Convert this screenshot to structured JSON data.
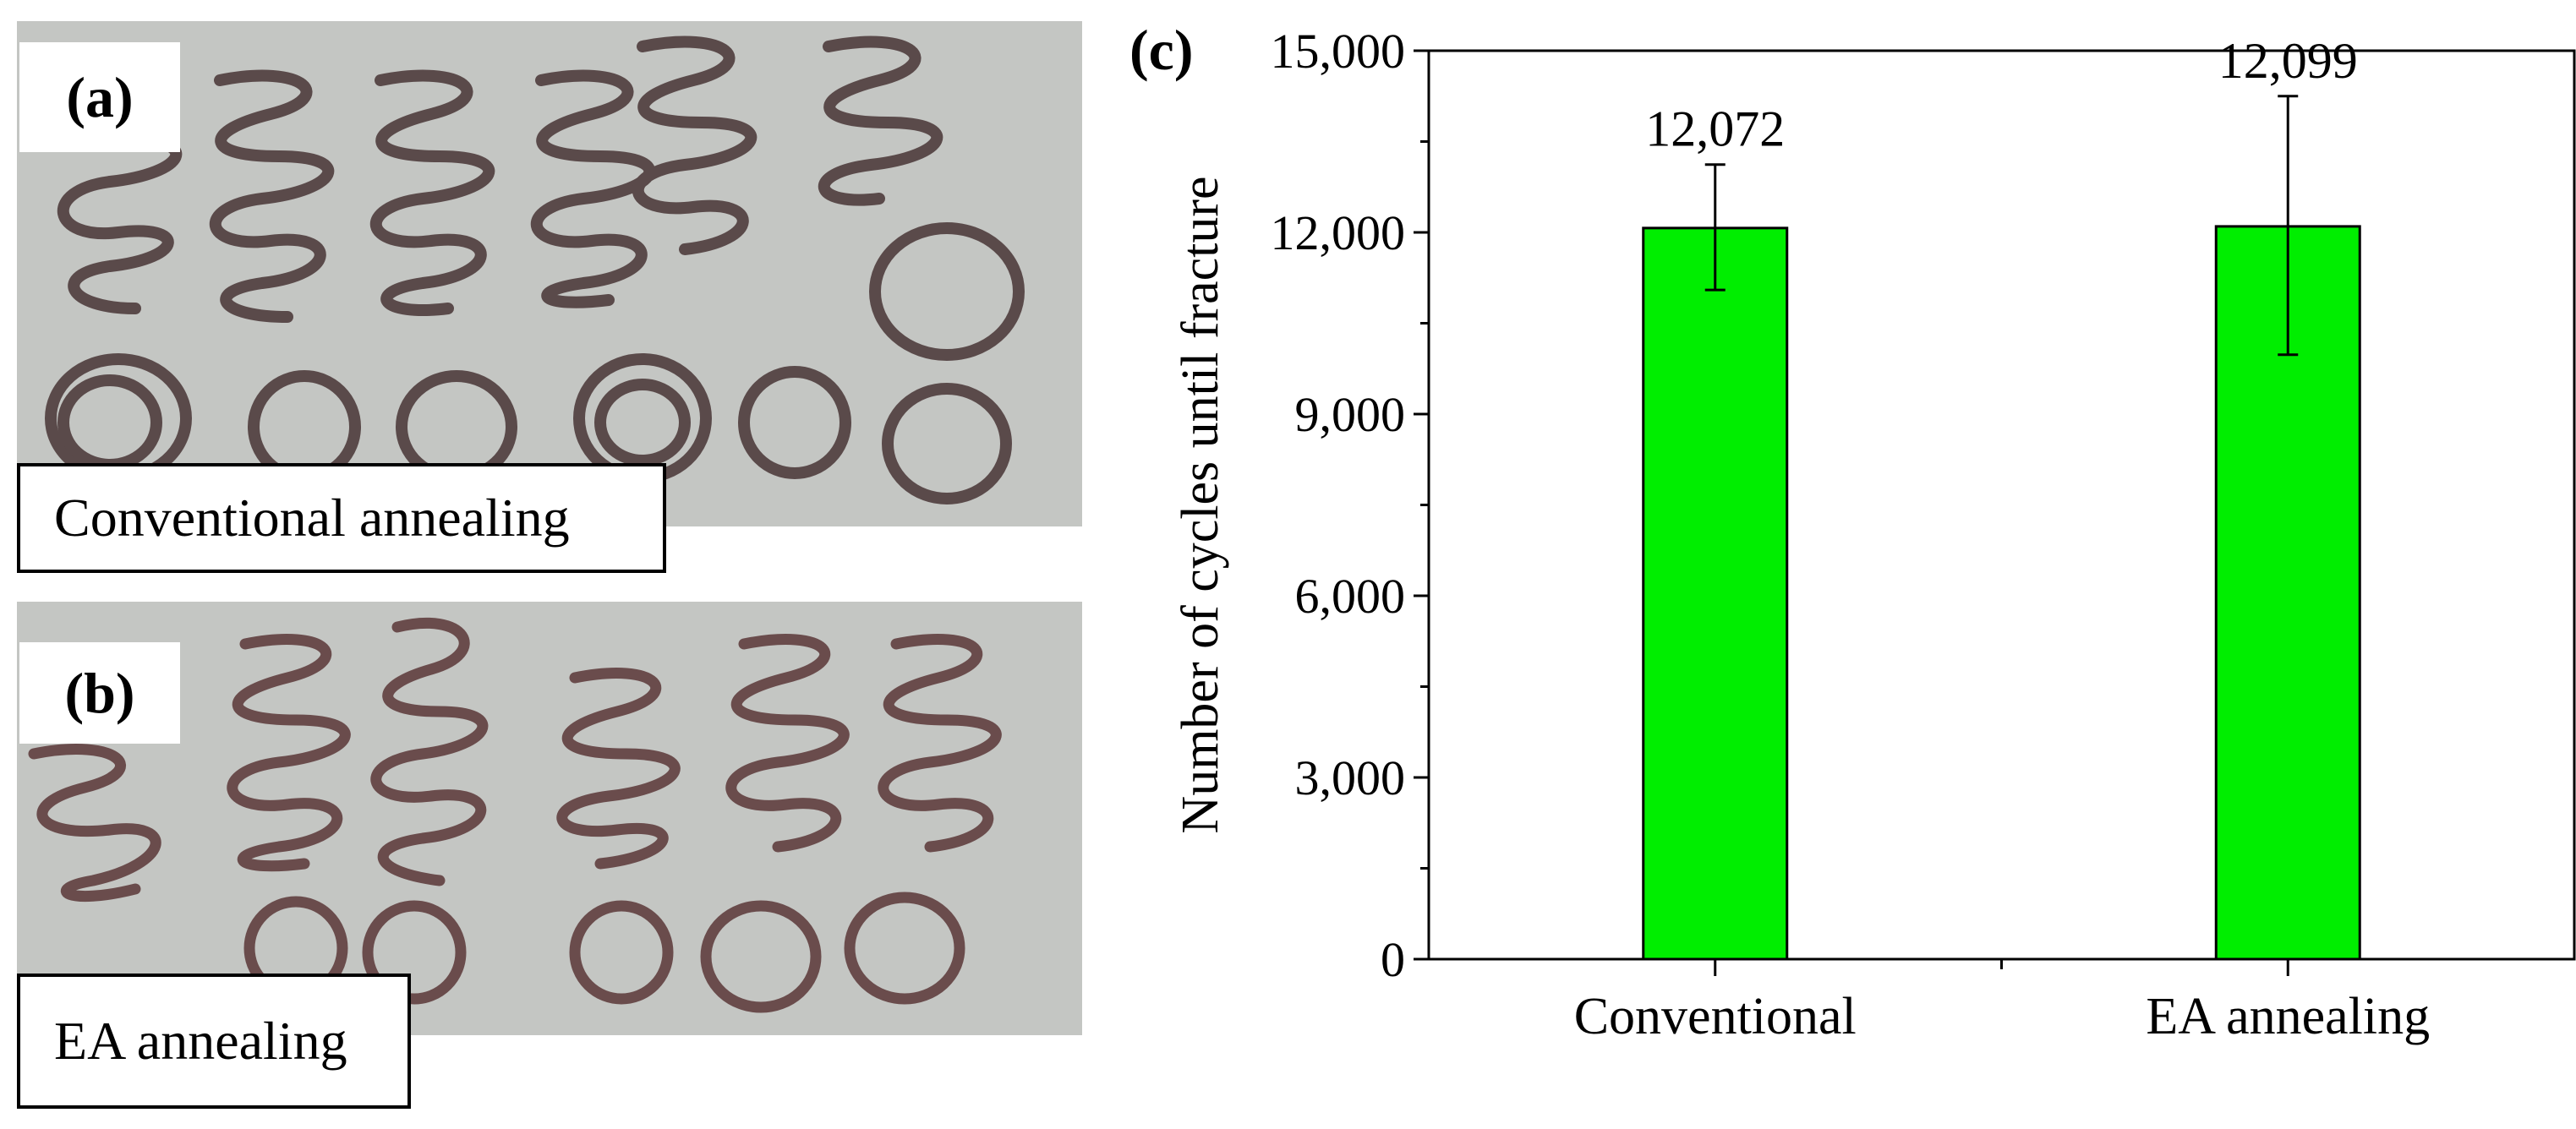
{
  "panels": {
    "a": {
      "label": "(a)",
      "caption": "Conventional annealing"
    },
    "b": {
      "label": "(b)",
      "caption": "EA annealing"
    },
    "c": {
      "label": "(c)"
    }
  },
  "colors": {
    "bar": "#00ee00",
    "photo_background": "#c4c6c3",
    "spring": "#5a4a4a"
  },
  "chart_data": {
    "type": "bar",
    "categories": [
      "Conventional",
      "EA annealing"
    ],
    "values": [
      12072,
      12099
    ],
    "value_labels": [
      "12,072",
      "12,099"
    ],
    "error_bars": [
      {
        "low": 11050,
        "high": 13120
      },
      {
        "low": 9980,
        "high": 14250
      }
    ],
    "ylabel": "Number of cycles until fracture",
    "xlabel": "",
    "ylim": [
      0,
      15000
    ],
    "yticks": [
      0,
      3000,
      6000,
      9000,
      12000,
      15000
    ],
    "ytick_labels": [
      "0",
      "3,000",
      "6,000",
      "9,000",
      "12,000",
      "15,000"
    ],
    "grid": false,
    "legend": "none"
  }
}
